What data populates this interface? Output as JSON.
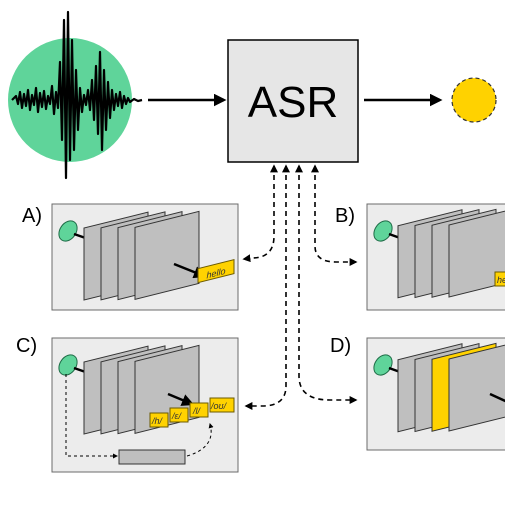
{
  "asr_label": "ASR",
  "panels": {
    "a": {
      "letter": "A)",
      "tokens": [
        "hello"
      ]
    },
    "b": {
      "letter": "B)",
      "tokens": [
        "he"
      ]
    },
    "c": {
      "letter": "C)",
      "tokens": [
        "/h/",
        "/ɛ/",
        "/l/",
        "/oʊ/"
      ]
    },
    "d": {
      "letter": "D)",
      "tokens": []
    }
  },
  "colors": {
    "waveform_circle": "#5fd49a",
    "output_circle": "#ffd200",
    "token_fill": "#ffd200",
    "layer_fill": "#bfbfbf",
    "panel_fill": "#ececec"
  }
}
